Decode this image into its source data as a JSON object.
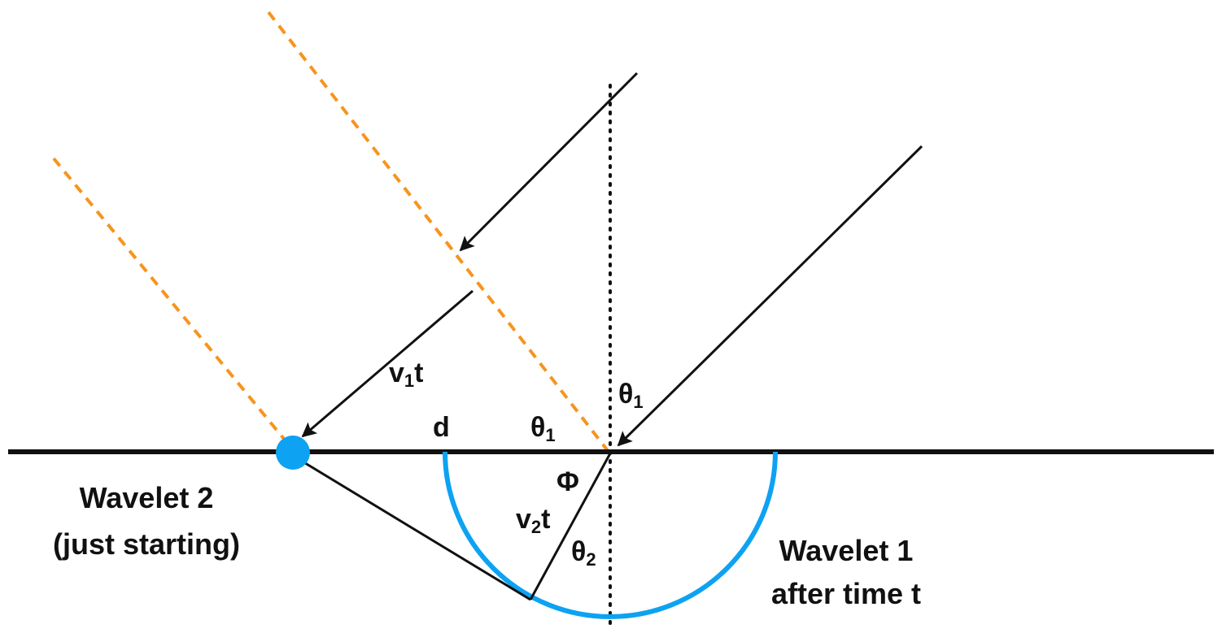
{
  "colors": {
    "ink": "#111111",
    "wavefront": "#f7941d",
    "wavelet": "#0da2f2"
  },
  "labels": {
    "v1t": {
      "main": "v",
      "sub": "1",
      "tail": "t"
    },
    "v2t": {
      "main": "v",
      "sub": "2",
      "tail": "t"
    },
    "theta1_normal": {
      "main": "θ",
      "sub": "1"
    },
    "theta1_surface": {
      "main": "θ",
      "sub": "1"
    },
    "theta2": {
      "main": "θ",
      "sub": "2"
    },
    "phi": "Φ",
    "d": "d",
    "wavelet2_line1": "Wavelet 2",
    "wavelet2_line2": "(just starting)",
    "wavelet1_line1": "Wavelet 1",
    "wavelet1_line2": "after time t"
  }
}
